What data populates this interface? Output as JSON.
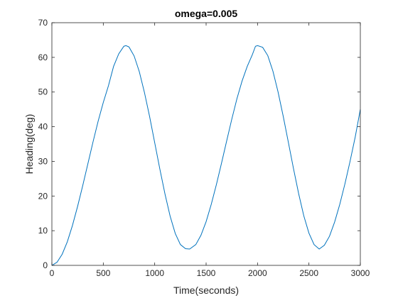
{
  "chart_data": {
    "type": "line",
    "title": "omega=0.005",
    "xlabel": "Time(seconds)",
    "ylabel": "Heading(deg)",
    "xlim": [
      0,
      3000
    ],
    "ylim": [
      0,
      70
    ],
    "xticks": [
      0,
      500,
      1000,
      1500,
      2000,
      2500,
      3000
    ],
    "yticks": [
      0,
      10,
      20,
      30,
      40,
      50,
      60,
      70
    ],
    "grid": false,
    "line_color": "#0072BD",
    "axis_color": "#262626",
    "series": [
      {
        "x": [
          0,
          50,
          100,
          150,
          200,
          250,
          300,
          350,
          400,
          450,
          500,
          550,
          600,
          650,
          700,
          720,
          750,
          800,
          850,
          900,
          950,
          1000,
          1050,
          1100,
          1150,
          1200,
          1250,
          1300,
          1340,
          1400,
          1450,
          1500,
          1550,
          1600,
          1650,
          1700,
          1750,
          1800,
          1850,
          1900,
          1950,
          1980,
          2000,
          2050,
          2100,
          2150,
          2200,
          2250,
          2300,
          2350,
          2400,
          2450,
          2500,
          2550,
          2600,
          2650,
          2700,
          2750,
          2800,
          2850,
          2900,
          2950,
          3000
        ],
        "y": [
          0,
          0.9,
          3.2,
          6.8,
          11.5,
          17.0,
          23.0,
          29.3,
          35.6,
          41.6,
          47.0,
          51.8,
          57.4,
          61.0,
          63.2,
          63.4,
          63.0,
          60.4,
          55.9,
          49.9,
          43.0,
          35.4,
          27.8,
          20.6,
          14.2,
          9.2,
          6.0,
          4.8,
          4.7,
          6.0,
          8.7,
          12.6,
          17.6,
          23.3,
          29.5,
          35.9,
          42.2,
          48.1,
          53.2,
          57.4,
          60.8,
          63.2,
          63.4,
          62.9,
          60.5,
          56.0,
          50.0,
          43.0,
          35.5,
          27.9,
          20.7,
          14.3,
          9.3,
          6.0,
          4.7,
          5.8,
          8.4,
          12.5,
          17.6,
          23.5,
          30.0,
          37.0,
          45.0
        ]
      }
    ]
  }
}
